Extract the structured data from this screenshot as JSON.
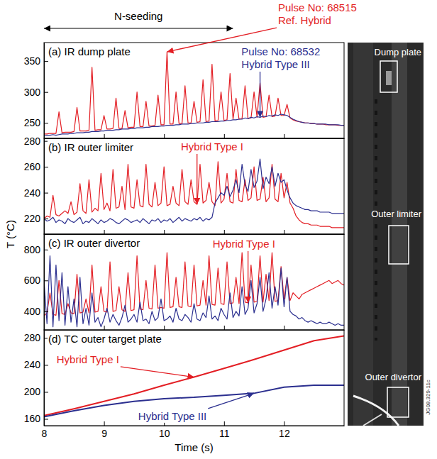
{
  "chart_data": [
    {
      "type": "line",
      "title": "(a) IR dump plate",
      "x": [
        8,
        8.05,
        8.1,
        8.15,
        8.2,
        8.25,
        8.3,
        8.35,
        8.4,
        8.45,
        8.5,
        8.55,
        8.6,
        8.65,
        8.7,
        8.75,
        8.8,
        8.85,
        8.9,
        8.95,
        9,
        9.05,
        9.1,
        9.15,
        9.2,
        9.25,
        9.3,
        9.35,
        9.4,
        9.45,
        9.5,
        9.55,
        9.6,
        9.65,
        9.7,
        9.75,
        9.8,
        9.85,
        9.9,
        9.95,
        10,
        10.05,
        10.1,
        10.15,
        10.2,
        10.25,
        10.3,
        10.35,
        10.4,
        10.45,
        10.5,
        10.55,
        10.6,
        10.65,
        10.7,
        10.75,
        10.8,
        10.85,
        10.9,
        10.95,
        11,
        11.05,
        11.1,
        11.15,
        11.2,
        11.25,
        11.3,
        11.35,
        11.4,
        11.45,
        11.5,
        11.55,
        11.6,
        11.65,
        11.7,
        11.75,
        11.8,
        11.85,
        11.9,
        11.95,
        12,
        12.05,
        12.1,
        12.15,
        12.2,
        12.25,
        12.3,
        12.35,
        12.4,
        12.45,
        12.5,
        12.55,
        12.6,
        12.65,
        12.7,
        12.75,
        12.8,
        12.85,
        12.9,
        12.95,
        13
      ],
      "xlim": [
        8,
        13
      ],
      "xticks": [
        8,
        9,
        10,
        11,
        12
      ],
      "ylim": [
        225,
        380
      ],
      "yticks": [
        250,
        300,
        350
      ],
      "tick_labels": "y",
      "series": [
        {
          "color": "#e31e24",
          "values": [
            232,
            232,
            233,
            233,
            233,
            268,
            234,
            235,
            235,
            235,
            236,
            275,
            237,
            237,
            237,
            238,
            340,
            238,
            239,
            239,
            262,
            240,
            240,
            241,
            290,
            241,
            241,
            270,
            242,
            243,
            243,
            300,
            244,
            244,
            285,
            245,
            245,
            246,
            295,
            247,
            247,
            365,
            248,
            248,
            300,
            249,
            249,
            310,
            250,
            250,
            285,
            251,
            252,
            320,
            252,
            253,
            345,
            253,
            254,
            300,
            254,
            255,
            330,
            256,
            290,
            256,
            257,
            310,
            257,
            258,
            300,
            259,
            315,
            259,
            260,
            295,
            260,
            261,
            290,
            262,
            262,
            280,
            258,
            255,
            253,
            252,
            251,
            250,
            250,
            249,
            249,
            248,
            248,
            248,
            247,
            247,
            247,
            247,
            246,
            246,
            246
          ]
        },
        {
          "color": "#2b2f8f",
          "values": [
            229,
            230,
            230,
            231,
            230,
            231,
            232,
            232,
            232,
            233,
            233,
            234,
            234,
            234,
            235,
            235,
            236,
            236,
            236,
            237,
            237,
            238,
            238,
            238,
            239,
            239,
            240,
            240,
            240,
            241,
            241,
            242,
            242,
            242,
            243,
            243,
            244,
            244,
            244,
            245,
            245,
            246,
            246,
            246,
            247,
            247,
            248,
            248,
            248,
            249,
            249,
            250,
            250,
            250,
            251,
            251,
            252,
            252,
            252,
            253,
            253,
            254,
            254,
            255,
            255,
            256,
            256,
            258,
            257,
            259,
            258,
            260,
            259,
            261,
            260,
            262,
            261,
            263,
            262,
            264,
            263,
            262,
            259,
            256,
            254,
            252,
            251,
            250,
            250,
            249,
            249,
            248,
            248,
            248,
            248,
            247,
            247,
            247,
            247,
            246,
            246
          ]
        }
      ],
      "annotations": [
        {
          "text": [
            "Pulse No: 68515",
            "Ref. Hybrid"
          ],
          "color": "#e31e24",
          "x": 11.9,
          "y": 430.5,
          "arrow_to": [
            10.05,
            365
          ]
        },
        {
          "text": [
            "Pulse No: 68532",
            "Hybrid Type III"
          ],
          "color": "#2b2f8f",
          "x": 11.29,
          "y": 359.3,
          "arrow_to": [
            11.6,
            259
          ]
        }
      ]
    },
    {
      "type": "line",
      "title": "(b) IR outer limiter",
      "x": [
        8,
        8.05,
        8.1,
        8.15,
        8.2,
        8.25,
        8.3,
        8.35,
        8.4,
        8.45,
        8.5,
        8.55,
        8.6,
        8.65,
        8.7,
        8.75,
        8.8,
        8.85,
        8.9,
        8.95,
        9,
        9.05,
        9.1,
        9.15,
        9.2,
        9.25,
        9.3,
        9.35,
        9.4,
        9.45,
        9.5,
        9.55,
        9.6,
        9.65,
        9.7,
        9.75,
        9.8,
        9.85,
        9.9,
        9.95,
        10,
        10.05,
        10.1,
        10.15,
        10.2,
        10.25,
        10.3,
        10.35,
        10.4,
        10.45,
        10.5,
        10.55,
        10.6,
        10.65,
        10.7,
        10.75,
        10.8,
        10.85,
        10.9,
        10.95,
        11,
        11.05,
        11.1,
        11.15,
        11.2,
        11.25,
        11.3,
        11.35,
        11.4,
        11.45,
        11.5,
        11.55,
        11.6,
        11.65,
        11.7,
        11.75,
        11.8,
        11.85,
        11.9,
        11.95,
        12,
        12.05,
        12.1,
        12.15,
        12.2,
        12.25,
        12.3,
        12.35,
        12.4,
        12.45,
        12.5,
        12.55,
        12.6,
        12.65,
        12.7,
        12.75,
        12.8,
        12.85,
        12.9,
        12.95,
        13
      ],
      "xlim": [
        8,
        13
      ],
      "xticks": [
        8,
        9,
        10,
        11,
        12
      ],
      "ylim": [
        208,
        282
      ],
      "yticks": [
        220,
        240,
        260,
        280
      ],
      "tick_labels": "y",
      "series": [
        {
          "color": "#e31e24",
          "values": [
            220,
            222,
            221,
            238,
            223,
            222,
            224,
            226,
            224,
            233,
            223,
            225,
            247,
            226,
            224,
            250,
            225,
            228,
            226,
            255,
            227,
            232,
            226,
            258,
            228,
            229,
            245,
            227,
            262,
            229,
            228,
            250,
            230,
            229,
            262,
            231,
            229,
            248,
            230,
            232,
            260,
            230,
            231,
            245,
            232,
            230,
            258,
            233,
            231,
            250,
            233,
            231,
            262,
            232,
            234,
            248,
            233,
            230,
            264,
            232,
            235,
            255,
            233,
            232,
            258,
            234,
            233,
            250,
            234,
            236,
            260,
            234,
            235,
            252,
            233,
            236,
            262,
            235,
            233,
            255,
            236,
            248,
            232,
            228,
            222,
            219,
            217,
            216,
            216,
            215,
            215,
            215,
            214,
            214,
            214,
            214,
            213,
            213,
            213,
            213,
            213
          ]
        },
        {
          "color": "#2b2f8f",
          "values": [
            220,
            218,
            219,
            221,
            217,
            219,
            218,
            216,
            220,
            218,
            217,
            219,
            221,
            216,
            218,
            217,
            220,
            218,
            216,
            219,
            217,
            218,
            220,
            219,
            217,
            216,
            218,
            220,
            219,
            217,
            218,
            219,
            217,
            220,
            218,
            216,
            219,
            218,
            220,
            217,
            219,
            218,
            220,
            217,
            219,
            221,
            218,
            220,
            219,
            218,
            220,
            219,
            221,
            218,
            220,
            219,
            221,
            232,
            236,
            240,
            238,
            245,
            237,
            242,
            250,
            240,
            262,
            246,
            241,
            258,
            244,
            249,
            266,
            243,
            252,
            247,
            260,
            245,
            255,
            248,
            250,
            242,
            236,
            232,
            230,
            229,
            228,
            227,
            227,
            226,
            226,
            226,
            225,
            225,
            225,
            225,
            224,
            224,
            224,
            224,
            224
          ]
        }
      ],
      "annotations": [
        {
          "text": [
            "Hybrid Type I"
          ],
          "color": "#e31e24",
          "x": 10.28,
          "y": 272.7,
          "arrow_to": [
            10.55,
            231
          ]
        }
      ]
    },
    {
      "type": "line",
      "title": "(c) IR outer divertor",
      "x": [
        8,
        8.05,
        8.1,
        8.15,
        8.2,
        8.25,
        8.3,
        8.35,
        8.4,
        8.45,
        8.5,
        8.55,
        8.6,
        8.65,
        8.7,
        8.75,
        8.8,
        8.85,
        8.9,
        8.95,
        9,
        9.05,
        9.1,
        9.15,
        9.2,
        9.25,
        9.3,
        9.35,
        9.4,
        9.45,
        9.5,
        9.55,
        9.6,
        9.65,
        9.7,
        9.75,
        9.8,
        9.85,
        9.9,
        9.95,
        10,
        10.05,
        10.1,
        10.15,
        10.2,
        10.25,
        10.3,
        10.35,
        10.4,
        10.45,
        10.5,
        10.55,
        10.6,
        10.65,
        10.7,
        10.75,
        10.8,
        10.85,
        10.9,
        10.95,
        11,
        11.05,
        11.1,
        11.15,
        11.2,
        11.25,
        11.3,
        11.35,
        11.4,
        11.45,
        11.5,
        11.55,
        11.6,
        11.65,
        11.7,
        11.75,
        11.8,
        11.85,
        11.9,
        11.95,
        12,
        12.05,
        12.1,
        12.15,
        12.2,
        12.25,
        12.3,
        12.35,
        12.4,
        12.45,
        12.5,
        12.55,
        12.6,
        12.65,
        12.7,
        12.75,
        12.8,
        12.85,
        12.9,
        12.95,
        13
      ],
      "xlim": [
        8,
        13
      ],
      "xticks": [
        8,
        9,
        10,
        11,
        12
      ],
      "ylim": [
        280,
        900
      ],
      "yticks": [
        400,
        600,
        800
      ],
      "tick_labels": "y",
      "series": [
        {
          "color": "#e31e24",
          "values": [
            370,
            390,
            520,
            380,
            375,
            600,
            385,
            380,
            450,
            390,
            385,
            640,
            390,
            395,
            480,
            390,
            700,
            395,
            400,
            560,
            400,
            395,
            720,
            400,
            405,
            560,
            410,
            400,
            650,
            405,
            410,
            760,
            415,
            410,
            600,
            420,
            415,
            700,
            420,
            425,
            420,
            780,
            425,
            430,
            620,
            430,
            425,
            720,
            435,
            430,
            700,
            435,
            440,
            600,
            440,
            760,
            445,
            440,
            680,
            450,
            445,
            720,
            450,
            455,
            620,
            450,
            780,
            460,
            455,
            700,
            460,
            465,
            760,
            460,
            640,
            470,
            780,
            465,
            470,
            690,
            480,
            620,
            470,
            520,
            500,
            480,
            510,
            520,
            530,
            540,
            550,
            560,
            570,
            580,
            590,
            600,
            580,
            590,
            600,
            580,
            570
          ]
        },
        {
          "color": "#2b2f8f",
          "values": [
            600,
            320,
            760,
            300,
            700,
            340,
            650,
            310,
            560,
            330,
            480,
            300,
            620,
            320,
            420,
            310,
            520,
            330,
            360,
            300,
            350,
            420,
            330,
            380,
            340,
            310,
            360,
            440,
            330,
            350,
            380,
            330,
            460,
            340,
            350,
            320,
            400,
            340,
            360,
            480,
            340,
            350,
            370,
            330,
            420,
            350,
            340,
            380,
            360,
            330,
            450,
            350,
            340,
            390,
            360,
            500,
            350,
            370,
            340,
            420,
            380,
            350,
            520,
            360,
            400,
            370,
            560,
            380,
            420,
            600,
            390,
            450,
            620,
            400,
            480,
            650,
            420,
            560,
            440,
            680,
            430,
            620,
            400,
            380,
            370,
            350,
            360,
            340,
            330,
            340,
            330,
            320,
            330,
            320,
            320,
            330,
            320,
            310,
            320,
            310,
            310
          ]
        }
      ],
      "annotations": [
        {
          "text": [
            "Hybrid Type I"
          ],
          "color": "#e31e24",
          "x": 10.81,
          "y": 812.7,
          "arrow_to": [
            11.4,
            455
          ]
        }
      ]
    },
    {
      "type": "line",
      "title": "(d) TC outer target plate",
      "x": [
        8,
        8.5,
        9,
        9.5,
        10,
        10.5,
        11,
        11.5,
        12,
        12.5,
        13
      ],
      "xlim": [
        8,
        13
      ],
      "xticks": [
        8,
        9,
        10,
        11,
        12
      ],
      "ylim": [
        150,
        292
      ],
      "yticks": [
        160,
        200,
        240,
        280
      ],
      "xlabel": "Time (s)",
      "series": [
        {
          "color": "#e31e24",
          "values": [
            165,
            175,
            186,
            197,
            210,
            222,
            235,
            248,
            262,
            276,
            283
          ]
        },
        {
          "color": "#2b2f8f",
          "values": [
            163,
            172,
            180,
            186,
            190,
            192,
            195,
            198,
            207,
            210,
            210
          ]
        }
      ],
      "annotations": [
        {
          "text": [
            "Hybrid Type I"
          ],
          "color": "#e31e24",
          "x": 8.21,
          "y": 242.6,
          "arrow_to": [
            10.5,
            222
          ]
        },
        {
          "text": [
            "Hybrid Type III"
          ],
          "color": "#2b2f8f",
          "x": 9.57,
          "y": 158.5,
          "arrow_to": [
            11.5,
            198
          ]
        }
      ]
    }
  ],
  "figure": {
    "ylabel": "T (°C)",
    "span": {
      "label": "N-seeding",
      "x": [
        8,
        11.15
      ]
    },
    "image": {
      "labels": [
        "Dump plate",
        "Outer limiter",
        "Outer divertor"
      ],
      "code": "JG08.329-11c"
    }
  }
}
